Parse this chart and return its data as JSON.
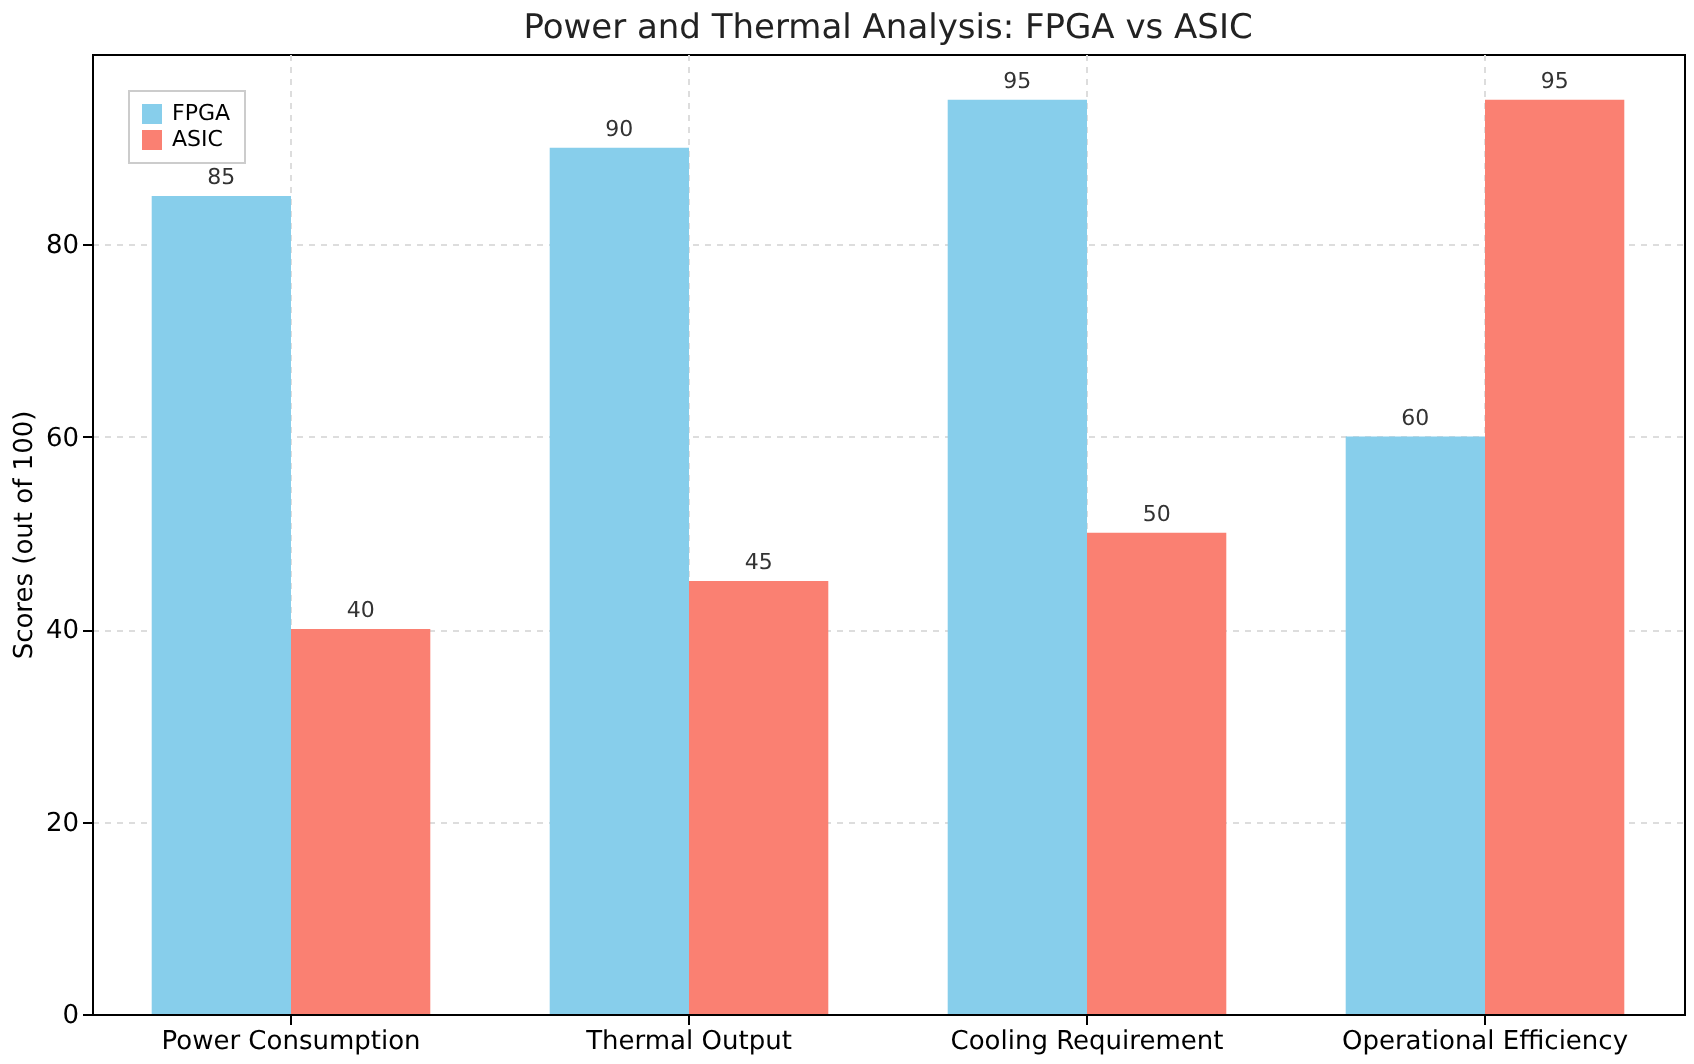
{
  "chart_data": {
    "type": "bar",
    "title": "Power and Thermal Analysis: FPGA vs ASIC",
    "ylabel": "Scores (out of 100)",
    "categories": [
      "Power Consumption",
      "Thermal Output",
      "Cooling Requirement",
      "Operational Efficiency"
    ],
    "series": [
      {
        "name": "FPGA",
        "color": "#87ceeb",
        "values": [
          85,
          90,
          95,
          60
        ]
      },
      {
        "name": "ASIC",
        "color": "#fa8072",
        "values": [
          40,
          45,
          50,
          95
        ]
      }
    ],
    "ylim": [
      0,
      99.75
    ],
    "yticks": [
      0,
      20,
      40,
      60,
      80
    ],
    "grid": true,
    "legend": "top left",
    "data_labels": true
  }
}
